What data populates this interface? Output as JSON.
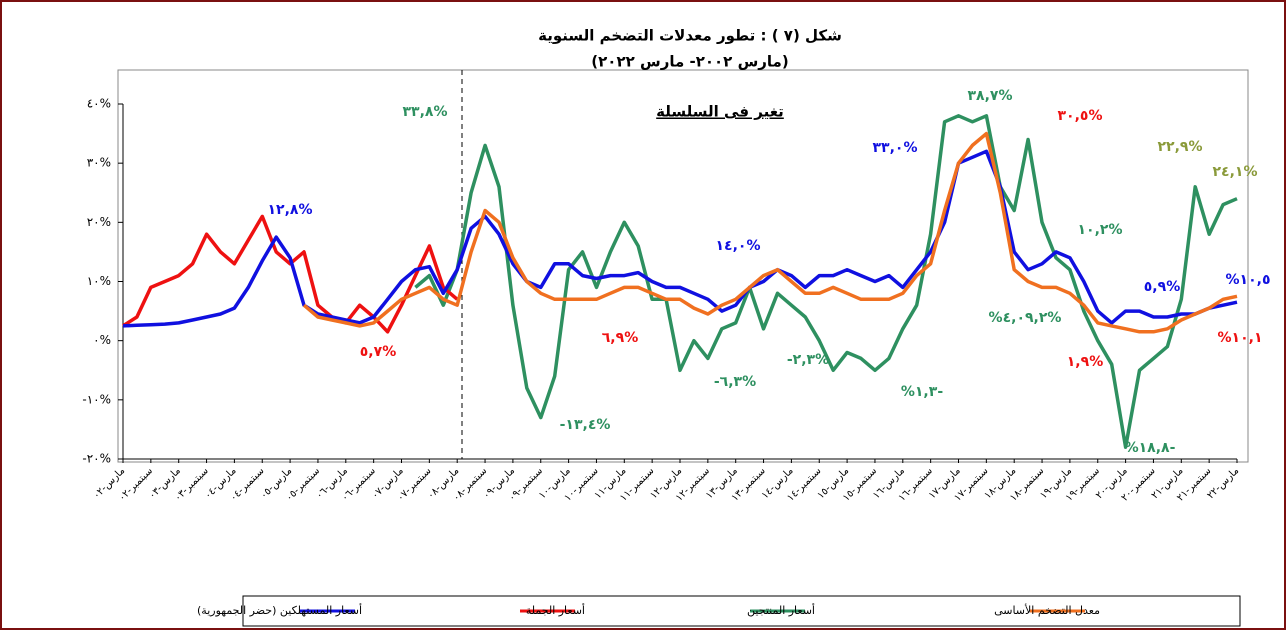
{
  "chart_data": {
    "type": "line",
    "title": "شكل (٧ ) : تطور معدلات التضخم السنوية",
    "subtitle": "(مارس ٢٠٠٢- مارس ٢٠٢٢)",
    "note": "تغير فى السلسلة",
    "categories": [
      "مارس-٠٢",
      null,
      "سبتمبر-٠٢",
      null,
      "مارس-٠٣",
      null,
      "سبتمبر-٠٣",
      null,
      "مارس-٠٤",
      null,
      "سبتمبر-٠٤",
      null,
      "مارس-٠٥",
      null,
      "سبتمبر-٠٥",
      null,
      "مارس-٠٦",
      null,
      "سبتمبر-٠٦",
      null,
      "مارس-٠٧",
      null,
      "سبتمبر-٠٧",
      null,
      "مارس-٠٨",
      null,
      "سبتمبر-٠٨",
      null,
      "مارس-٠٩",
      null,
      "سبتمبر-٠٩",
      null,
      "مارس-١٠",
      null,
      "سبتمبر-١٠",
      null,
      "مارس-١١",
      null,
      "سبتمبر-١١",
      null,
      "مارس-١٢",
      null,
      "سبتمبر-١٢",
      null,
      "مارس-١٣",
      null,
      "سبتمبر-١٣",
      null,
      "مارس-١٤",
      null,
      "سبتمبر-١٤",
      null,
      "مارس-١٥",
      null,
      "سبتمبر-١٥",
      null,
      "مارس-١٦",
      null,
      "سبتمبر-١٦",
      null,
      "مارس-١٧",
      null,
      "سبتمبر-١٧",
      null,
      "مارس-١٨",
      null,
      "سبتمبر-١٨",
      null,
      "مارس-١٩",
      null,
      "سبتمبر-١٩",
      null,
      "مارس-٢٠",
      null,
      "سبتمبر-٢٠",
      null,
      "مارس-٢١",
      null,
      "سبتمبر-٢١",
      null,
      "مارس-٢٢"
    ],
    "series": [
      {
        "name": "أسعار المستهلكين (حضر الجمهورية)",
        "color": "#1010e0",
        "values": [
          2.5,
          2.6,
          2.7,
          2.8,
          3.0,
          3.5,
          4.0,
          4.5,
          5.5,
          9,
          13.5,
          17.5,
          14,
          6,
          4.5,
          4,
          3.5,
          3,
          4,
          7,
          10,
          12,
          12.5,
          8,
          12,
          19,
          21,
          18,
          13,
          10,
          9,
          13,
          13,
          11,
          10.5,
          11,
          11,
          11.5,
          10,
          9,
          9,
          8,
          7,
          5,
          6,
          9,
          10,
          12,
          11,
          9,
          11,
          11,
          12,
          11,
          10,
          11,
          9,
          12,
          15,
          20,
          30,
          31,
          32,
          26,
          15,
          12,
          13,
          15,
          14,
          10,
          5,
          3,
          5,
          5,
          4,
          4,
          4.5,
          4.5,
          5.5,
          6,
          6.5
        ]
      },
      {
        "name": "أسعار الجملة",
        "color": "#ee1111",
        "values": [
          2.5,
          4,
          9,
          10,
          11,
          13,
          18,
          15,
          13,
          17,
          21,
          15,
          13,
          15,
          6,
          4,
          3,
          6,
          4,
          1.5,
          6,
          11,
          16,
          9,
          7,
          null,
          null,
          null,
          null,
          null,
          null,
          null,
          null,
          null,
          null,
          null,
          null,
          null,
          null,
          null,
          null,
          null,
          null,
          null,
          null,
          null,
          null,
          null,
          null,
          null,
          null,
          null,
          null,
          null,
          null,
          null,
          null,
          null,
          null,
          null,
          null,
          null,
          null,
          null,
          null,
          null,
          null,
          null,
          null,
          null,
          null,
          null,
          null,
          null,
          null,
          null,
          null,
          null,
          null,
          null,
          null
        ]
      },
      {
        "name": "أسعار المنتجين",
        "color": "#2e9060",
        "values": [
          null,
          null,
          null,
          null,
          null,
          null,
          null,
          null,
          null,
          null,
          null,
          null,
          null,
          null,
          null,
          null,
          null,
          null,
          null,
          null,
          null,
          9,
          11,
          6,
          12,
          25,
          33,
          26,
          6,
          -8,
          -13,
          -6,
          12,
          15,
          9,
          15,
          20,
          16,
          7,
          7,
          -5,
          0,
          -3,
          2,
          3,
          9,
          2,
          8,
          6,
          4,
          0,
          -5,
          -2,
          -3,
          -5,
          -3,
          2,
          6,
          18,
          37,
          38,
          37,
          38,
          26,
          22,
          34,
          20,
          14,
          12,
          5,
          0,
          -4,
          -18,
          -5,
          -3,
          -1,
          7,
          26,
          18,
          23,
          24
        ]
      },
      {
        "name": "معدل التضخم الأساسى",
        "color": "#f07020",
        "values": [
          null,
          null,
          null,
          null,
          null,
          null,
          null,
          null,
          null,
          null,
          null,
          null,
          null,
          6,
          4,
          3.5,
          3,
          2.5,
          3,
          5,
          7,
          8,
          9,
          7,
          6,
          15,
          22,
          20,
          14,
          10,
          8,
          7,
          7,
          7,
          7,
          8,
          9,
          9,
          8,
          7,
          7,
          5.5,
          4.5,
          6,
          7,
          9,
          11,
          12,
          10,
          8,
          8,
          9,
          8,
          7,
          7,
          7,
          8,
          11,
          13,
          22,
          30,
          33,
          35,
          25,
          12,
          10,
          9,
          9,
          8,
          6,
          3,
          2.5,
          2,
          1.5,
          1.5,
          2,
          3.5,
          4.5,
          5.5,
          7,
          7.5
        ]
      }
    ],
    "ylim": [
      -20,
      40
    ],
    "yticks": [
      {
        "value": -20,
        "label": "-٢٠%"
      },
      {
        "value": -10,
        "label": "-١٠%"
      },
      {
        "value": 0,
        "label": "٠%"
      },
      {
        "value": 10,
        "label": "١٠%"
      },
      {
        "value": 20,
        "label": "٢٠%"
      },
      {
        "value": 30,
        "label": "٣٠%"
      },
      {
        "value": 40,
        "label": "٤٠%"
      }
    ],
    "annotations": [
      {
        "text": "٣٣,٨%",
        "color": "#2e9060"
      },
      {
        "text": "١٢,٨%",
        "color": "#1010e0"
      },
      {
        "text": "٥,٧%",
        "color": "#ee1111"
      },
      {
        "text": "١٤,٠%",
        "color": "#1010e0"
      },
      {
        "text": "٦,٩%",
        "color": "#ee1111"
      },
      {
        "text": "-١٣,٤%",
        "color": "#2e9060"
      },
      {
        "text": "-٦,٣%",
        "color": "#2e9060"
      },
      {
        "text": "-٢,٣%",
        "color": "#2e9060"
      },
      {
        "text": "%١,٣-",
        "color": "#2e9060"
      },
      {
        "text": "٣٣,٠%",
        "color": "#1010e0"
      },
      {
        "text": "٣٨,٧%",
        "color": "#2e9060"
      },
      {
        "text": "٣٠,٥%",
        "color": "#ee1111"
      },
      {
        "text": "١٠,٢%",
        "color": "#2e9060"
      },
      {
        "text": "%٤,٠٩,٢%",
        "color": "#2e9060"
      },
      {
        "text": "٢٢,٩%",
        "color": "#8a9a3a"
      },
      {
        "text": "٢٤,١%",
        "color": "#8a9a3a"
      },
      {
        "text": "%١٠,٥",
        "color": "#1010e0"
      },
      {
        "text": "٥,٩%",
        "color": "#1010e0"
      },
      {
        "text": "%١٠,١",
        "color": "#ee1111"
      },
      {
        "text": "١,٩%",
        "color": "#ee1111"
      },
      {
        "text": "%١٨,٨-",
        "color": "#2e9060"
      }
    ]
  }
}
